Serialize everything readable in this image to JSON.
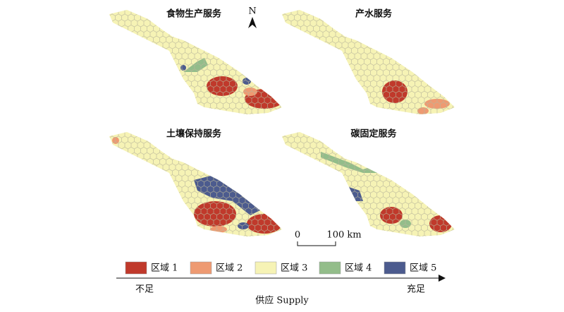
{
  "panels": [
    {
      "title": "食物生产服务"
    },
    {
      "title": "产水服务"
    },
    {
      "title": "土壤保持服务"
    },
    {
      "title": "碳固定服务"
    }
  ],
  "north": "N",
  "scale_bar": {
    "start": 0,
    "end": "100 km"
  },
  "legend": [
    {
      "label": "区域 1",
      "color": "#c0392b"
    },
    {
      "label": "区域 2",
      "color": "#ee9a72"
    },
    {
      "label": "区域 3",
      "color": "#f6f3b5"
    },
    {
      "label": "区域 4",
      "color": "#93bd8a"
    },
    {
      "label": "区域 5",
      "color": "#4c5b8e"
    }
  ],
  "supply_axis": {
    "low": "不足",
    "high": "充足",
    "label": "供应 Supply"
  }
}
